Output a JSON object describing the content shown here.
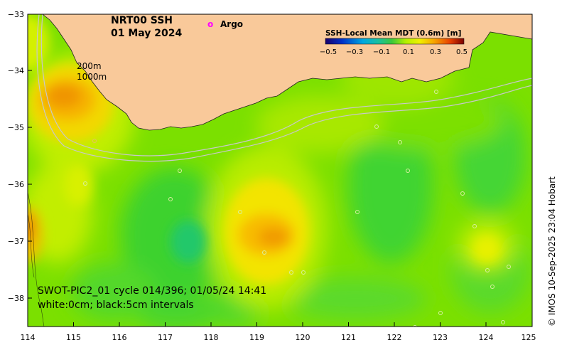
{
  "title": {
    "product": "NRT00 SSH",
    "date": "01 May 2024"
  },
  "legend": {
    "argo_symbol": "o",
    "argo_label": "Argo",
    "colorbar_title": "SSH-Local Mean MDT (0.6m) [m]",
    "colorbar_ticks": [
      "−0.5",
      "−0.3",
      "−0.1",
      "0.1",
      "0.3",
      "0.5"
    ],
    "colorbar_range": [
      -0.5,
      0.5
    ]
  },
  "isobaths": {
    "shallow": "200m",
    "deep": "1000m"
  },
  "footer": {
    "swot_line": "SWOT-PIC2_01 cycle 014/396; 01/05/24 14:41",
    "contour_line": "white:0cm; black:5cm intervals"
  },
  "credit": "© IMOS 10-Sep-2025 23:04 Hobart",
  "axes": {
    "lon_ticks": [
      "114",
      "115",
      "116",
      "117",
      "118",
      "119",
      "120",
      "121",
      "122",
      "123",
      "124",
      "125"
    ],
    "lat_ticks": [
      "−33",
      "−34",
      "−35",
      "−36",
      "−37",
      "−38"
    ],
    "lon_range": [
      114,
      125
    ],
    "lat_range": [
      -38.5,
      -33
    ]
  },
  "colors": {
    "land": "#f9c99a",
    "argo": "#ff00ff",
    "isobath": "#c8c8c8"
  },
  "ssh_features": [
    {
      "name": "eddy-west-high",
      "lon": 115.0,
      "lat": -34.5,
      "value": 0.3
    },
    {
      "name": "eddy-center-high",
      "lon": 119.6,
      "lat": -36.9,
      "value": 0.32
    },
    {
      "name": "eddy-southwest-low",
      "lon": 117.5,
      "lat": -37.0,
      "value": -0.05
    },
    {
      "name": "eddy-east-low",
      "lon": 122.5,
      "lat": -36.0,
      "value": 0.02
    },
    {
      "name": "eddy-east-high",
      "lon": 124.5,
      "lat": -37.0,
      "value": 0.18
    }
  ]
}
